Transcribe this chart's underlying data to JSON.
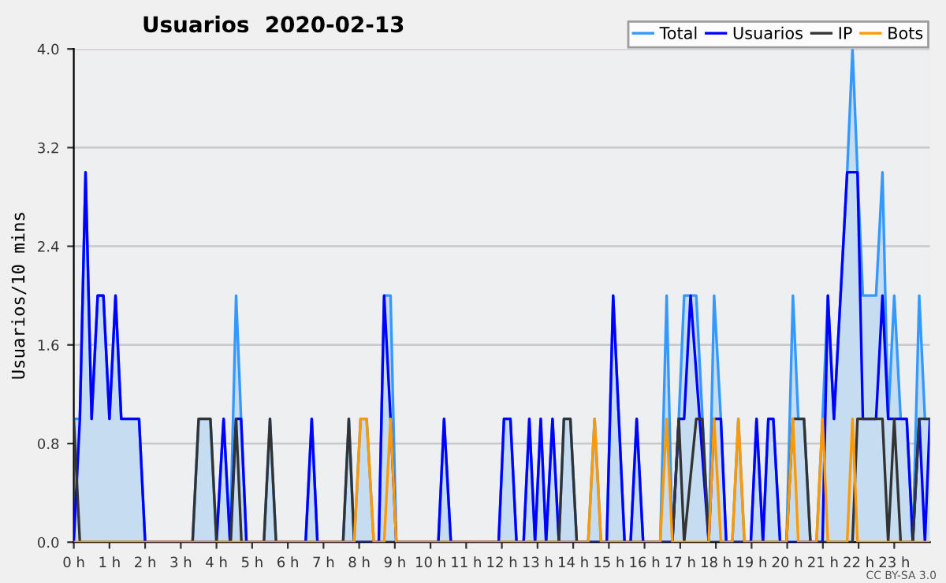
{
  "chart_data": {
    "type": "line",
    "title": "Usuarios  2020-02-13",
    "ylabel": "Usuarios/10 mins",
    "annotations": [
      "CC BY-SA 3.0"
    ],
    "xlim": [
      0,
      24
    ],
    "ylim": [
      0,
      4
    ],
    "xticks": [
      {
        "value": 0,
        "label": "0 h"
      },
      {
        "value": 1,
        "label": "1 h"
      },
      {
        "value": 2,
        "label": "2 h"
      },
      {
        "value": 3,
        "label": "3 h"
      },
      {
        "value": 4,
        "label": "4 h"
      },
      {
        "value": 5,
        "label": "5 h"
      },
      {
        "value": 6,
        "label": "6 h"
      },
      {
        "value": 7,
        "label": "7 h"
      },
      {
        "value": 8,
        "label": "8 h"
      },
      {
        "value": 9,
        "label": "9 h"
      },
      {
        "value": 10,
        "label": "10 h"
      },
      {
        "value": 11,
        "label": "11 h"
      },
      {
        "value": 12,
        "label": "12 h"
      },
      {
        "value": 13,
        "label": "13 h"
      },
      {
        "value": 14,
        "label": "14 h"
      },
      {
        "value": 15,
        "label": "15 h"
      },
      {
        "value": 16,
        "label": "16 h"
      },
      {
        "value": 17,
        "label": "17 h"
      },
      {
        "value": 18,
        "label": "18 h"
      },
      {
        "value": 19,
        "label": "19 h"
      },
      {
        "value": 20,
        "label": "20 h"
      },
      {
        "value": 21,
        "label": "21 h"
      },
      {
        "value": 22,
        "label": "22 h"
      },
      {
        "value": 23,
        "label": "23 h"
      }
    ],
    "yticks": [
      {
        "value": 0,
        "label": "0.0"
      },
      {
        "value": 0.8,
        "label": "0.8"
      },
      {
        "value": 1.6,
        "label": "1.6"
      },
      {
        "value": 2.4,
        "label": "2.4"
      },
      {
        "value": 3.2,
        "label": "3.2"
      },
      {
        "value": 4,
        "label": "4.0"
      }
    ],
    "grid": "y",
    "legend": "top right",
    "marker": "none",
    "line_style": "solid",
    "series": [
      {
        "name": "Total",
        "type": "area",
        "color": "#3399ff",
        "x": [
          0,
          0.17,
          0.33,
          0.5,
          0.67,
          0.83,
          1.0,
          1.17,
          1.33,
          1.83,
          2.0,
          3.33,
          3.5,
          3.83,
          4.0,
          4.2,
          4.38,
          4.55,
          4.69,
          4.84,
          5.33,
          5.5,
          5.67,
          6.5,
          6.67,
          6.83,
          7.55,
          7.71,
          7.86,
          8.04,
          8.21,
          8.41,
          8.55,
          8.7,
          8.88,
          9.04,
          10.22,
          10.38,
          10.57,
          11.91,
          12.06,
          12.24,
          12.41,
          12.61,
          12.77,
          12.93,
          13.09,
          13.24,
          13.42,
          13.6,
          13.74,
          13.92,
          14.1,
          14.42,
          14.6,
          14.78,
          14.94,
          15.12,
          15.44,
          15.61,
          15.78,
          15.96,
          16.44,
          16.62,
          16.78,
          16.96,
          17.11,
          17.45,
          17.8,
          17.95,
          18.14,
          18.29,
          18.46,
          18.63,
          18.8,
          18.98,
          19.14,
          19.32,
          19.47,
          19.61,
          19.8,
          19.98,
          20.16,
          20.31,
          20.47,
          20.65,
          20.82,
          20.99,
          21.14,
          21.31,
          21.68,
          21.83,
          21.97,
          22.12,
          22.49,
          22.67,
          22.83,
          23.0,
          23.18,
          23.35,
          23.52,
          23.7,
          23.86,
          24.0
        ],
        "values": [
          1,
          1,
          3,
          1,
          2,
          2,
          1,
          2,
          1,
          1,
          0,
          0,
          1,
          1,
          0,
          1,
          0,
          2,
          1,
          0,
          0,
          1,
          0,
          0,
          1,
          0,
          0,
          1,
          0,
          1,
          1,
          0,
          0,
          2,
          2,
          0,
          0,
          1,
          0,
          0,
          1,
          1,
          0,
          0,
          1,
          0,
          1,
          0,
          1,
          0,
          1,
          1,
          0,
          0,
          1,
          0,
          0,
          2,
          0,
          0,
          1,
          0,
          0,
          2,
          0,
          1,
          2,
          2,
          0,
          2,
          1,
          0,
          0,
          1,
          0,
          0,
          1,
          0,
          1,
          1,
          0,
          0,
          2,
          1,
          1,
          0,
          0,
          1,
          2,
          1,
          3,
          4,
          3,
          2,
          2,
          3,
          1,
          2,
          1,
          1,
          0,
          2,
          1,
          1
        ]
      },
      {
        "name": "Usuarios",
        "color": "#0000ff",
        "x": [
          0,
          0.17,
          0.33,
          0.5,
          0.67,
          0.83,
          1.0,
          1.17,
          1.33,
          1.83,
          2.0,
          4.0,
          4.2,
          4.38,
          4.55,
          4.69,
          4.84,
          6.5,
          6.67,
          6.83,
          8.55,
          8.7,
          8.88,
          9.04,
          10.22,
          10.38,
          10.57,
          11.91,
          12.06,
          12.24,
          12.41,
          12.61,
          12.77,
          12.93,
          13.09,
          13.24,
          13.42,
          13.6,
          14.94,
          15.12,
          15.44,
          15.61,
          15.78,
          15.96,
          16.78,
          16.96,
          17.11,
          17.29,
          17.8,
          17.95,
          18.14,
          18.29,
          18.98,
          19.14,
          19.32,
          19.47,
          19.61,
          19.8,
          20.99,
          21.14,
          21.31,
          21.68,
          21.97,
          22.12,
          22.49,
          22.67,
          22.83,
          23.35,
          23.52,
          23.7,
          23.86,
          24.0
        ],
        "values": [
          0,
          1,
          3,
          1,
          2,
          2,
          1,
          2,
          1,
          1,
          0,
          0,
          1,
          0,
          1,
          1,
          0,
          0,
          1,
          0,
          0,
          2,
          1,
          0,
          0,
          1,
          0,
          0,
          1,
          1,
          0,
          0,
          1,
          0,
          1,
          0,
          1,
          0,
          0,
          2,
          0,
          0,
          1,
          0,
          0,
          1,
          1,
          2,
          0,
          1,
          1,
          0,
          0,
          1,
          0,
          1,
          1,
          0,
          0,
          2,
          1,
          3,
          3,
          1,
          1,
          2,
          1,
          1,
          0,
          1,
          0,
          1
        ]
      },
      {
        "name": "IP",
        "color": "#333333",
        "x": [
          0,
          0.17,
          3.33,
          3.5,
          3.83,
          4.0,
          4.4,
          4.55,
          4.7,
          5.33,
          5.5,
          5.67,
          7.55,
          7.71,
          7.86,
          13.6,
          13.74,
          13.92,
          14.1,
          16.78,
          16.96,
          17.11,
          17.45,
          17.62,
          17.8,
          19.98,
          20.16,
          20.47,
          20.65,
          21.83,
          21.97,
          22.67,
          22.83,
          23.0,
          23.18,
          23.52,
          23.7,
          24.0
        ],
        "values": [
          1,
          0,
          0,
          1,
          1,
          0,
          0,
          1,
          0,
          0,
          1,
          0,
          0,
          1,
          0,
          0,
          1,
          1,
          0,
          0,
          1,
          0,
          1,
          1,
          0,
          0,
          1,
          1,
          0,
          0,
          1,
          1,
          0,
          1,
          0,
          0,
          1,
          1
        ]
      },
      {
        "name": "Bots",
        "color": "#ff9900",
        "x": [
          0,
          7.86,
          8.04,
          8.21,
          8.41,
          8.7,
          8.88,
          9.04,
          14.42,
          14.6,
          14.78,
          16.44,
          16.62,
          16.78,
          17.8,
          17.95,
          18.14,
          18.46,
          18.63,
          18.8,
          19.98,
          20.16,
          20.31,
          20.82,
          20.99,
          21.14,
          21.68,
          21.83,
          21.97,
          24.0
        ],
        "values": [
          0,
          0,
          1,
          1,
          0,
          0,
          1,
          0,
          0,
          1,
          0,
          0,
          1,
          0,
          0,
          1,
          0,
          0,
          1,
          0,
          0,
          1,
          0,
          0,
          1,
          0,
          0,
          1,
          0,
          0
        ]
      }
    ]
  }
}
